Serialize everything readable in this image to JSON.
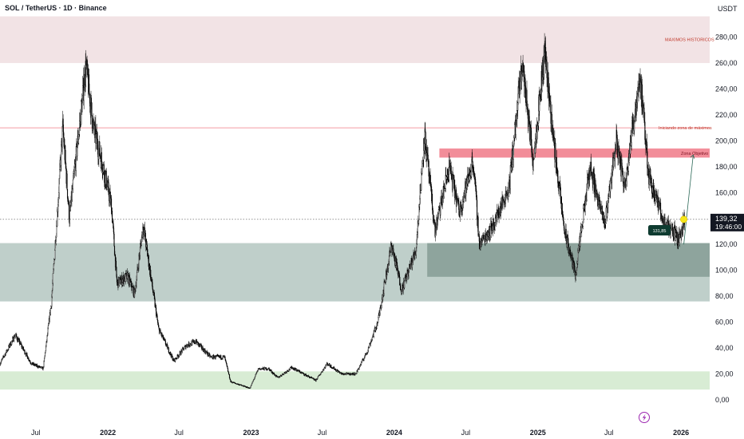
{
  "header": {
    "symbol_title": "SOL / TetherUS · 1D · Binance",
    "currency": "USDT"
  },
  "chart_data": {
    "type": "candlestick",
    "ylim": [
      -10,
      300
    ],
    "y_ticks": [
      {
        "value": 0,
        "label": "0,00"
      },
      {
        "value": 20,
        "label": "20,00"
      },
      {
        "value": 40,
        "label": "40,00"
      },
      {
        "value": 60,
        "label": "60,00"
      },
      {
        "value": 80,
        "label": "80,00"
      },
      {
        "value": 100,
        "label": "100,00"
      },
      {
        "value": 120,
        "label": "120,00"
      },
      {
        "value": 140,
        "label": "140,00"
      },
      {
        "value": 160,
        "label": "160,00"
      },
      {
        "value": 180,
        "label": "180,00"
      },
      {
        "value": 200,
        "label": "200,00"
      },
      {
        "value": 220,
        "label": "220,00"
      },
      {
        "value": 240,
        "label": "240,00"
      },
      {
        "value": 260,
        "label": "260,00"
      },
      {
        "value": 280,
        "label": "280,00"
      }
    ],
    "x_ticks": [
      {
        "date": "2021-07-01",
        "label": "Jul",
        "bold": false
      },
      {
        "date": "2022-01-01",
        "label": "2022",
        "bold": true
      },
      {
        "date": "2022-07-01",
        "label": "Jul",
        "bold": false
      },
      {
        "date": "2023-01-01",
        "label": "2023",
        "bold": true
      },
      {
        "date": "2023-07-01",
        "label": "Jul",
        "bold": false
      },
      {
        "date": "2024-01-01",
        "label": "2024",
        "bold": true
      },
      {
        "date": "2024-07-01",
        "label": "Jul",
        "bold": false
      },
      {
        "date": "2025-01-01",
        "label": "2025",
        "bold": true
      },
      {
        "date": "2025-07-01",
        "label": "Jul",
        "bold": false
      },
      {
        "date": "2026-01-01",
        "label": "2026",
        "bold": true
      }
    ],
    "xlim": [
      "2021-04-01",
      "2026-03-15"
    ],
    "price_path": [
      [
        "2021-04-01",
        28
      ],
      [
        "2021-05-10",
        50
      ],
      [
        "2021-06-20",
        28
      ],
      [
        "2021-07-20",
        24
      ],
      [
        "2021-08-10",
        75
      ],
      [
        "2021-09-08",
        210
      ],
      [
        "2021-09-25",
        140
      ],
      [
        "2021-10-20",
        210
      ],
      [
        "2021-11-06",
        258
      ],
      [
        "2021-11-25",
        210
      ],
      [
        "2021-12-20",
        180
      ],
      [
        "2022-01-10",
        150
      ],
      [
        "2022-01-24",
        90
      ],
      [
        "2022-02-20",
        95
      ],
      [
        "2022-03-10",
        82
      ],
      [
        "2022-04-01",
        135
      ],
      [
        "2022-05-10",
        55
      ],
      [
        "2022-06-18",
        30
      ],
      [
        "2022-07-20",
        42
      ],
      [
        "2022-08-13",
        45
      ],
      [
        "2022-09-20",
        33
      ],
      [
        "2022-10-25",
        33
      ],
      [
        "2022-11-10",
        14
      ],
      [
        "2022-12-29",
        9
      ],
      [
        "2023-01-20",
        24
      ],
      [
        "2023-02-15",
        24
      ],
      [
        "2023-03-10",
        17
      ],
      [
        "2023-04-15",
        25
      ],
      [
        "2023-05-15",
        20
      ],
      [
        "2023-06-15",
        15
      ],
      [
        "2023-07-14",
        28
      ],
      [
        "2023-08-20",
        20
      ],
      [
        "2023-09-25",
        20
      ],
      [
        "2023-10-25",
        38
      ],
      [
        "2023-11-20",
        60
      ],
      [
        "2023-12-25",
        120
      ],
      [
        "2024-01-20",
        85
      ],
      [
        "2024-02-25",
        115
      ],
      [
        "2024-03-18",
        205
      ],
      [
        "2024-04-14",
        130
      ],
      [
        "2024-05-20",
        180
      ],
      [
        "2024-06-15",
        145
      ],
      [
        "2024-07-20",
        185
      ],
      [
        "2024-08-05",
        120
      ],
      [
        "2024-09-10",
        135
      ],
      [
        "2024-10-20",
        165
      ],
      [
        "2024-11-22",
        260
      ],
      [
        "2024-12-20",
        185
      ],
      [
        "2025-01-19",
        270
      ],
      [
        "2025-02-10",
        200
      ],
      [
        "2025-03-10",
        130
      ],
      [
        "2025-04-07",
        97
      ],
      [
        "2025-05-14",
        180
      ],
      [
        "2025-06-20",
        135
      ],
      [
        "2025-07-20",
        200
      ],
      [
        "2025-08-10",
        165
      ],
      [
        "2025-09-18",
        250
      ],
      [
        "2025-10-10",
        175
      ],
      [
        "2025-11-20",
        135
      ],
      [
        "2025-12-10",
        132
      ],
      [
        "2025-12-25",
        123
      ],
      [
        "2026-01-10",
        139.32
      ]
    ],
    "current_price": 139.32,
    "countdown": "19:46:00",
    "marker_price": "131,85",
    "historical_high_zone": [
      260,
      296
    ],
    "historical_high_label": "MAXIMOS HISTORICOS",
    "sell_line": 210,
    "sell_label": "Iniciando zona de máximos",
    "target_zone": [
      187,
      194
    ],
    "target_label": "Zona Objetivo",
    "demand_zone_main": [
      76,
      121
    ],
    "demand_zone_inner": [
      95,
      121
    ],
    "low_zone": [
      8,
      22
    ],
    "projection": {
      "from": [
        "2026-01-08",
        120
      ],
      "to": [
        "2026-02-01",
        189
      ]
    },
    "colors": {
      "candle": "#000000",
      "historical_zone": "#f2e3e5",
      "historical_text": "#c0392b",
      "sell_line": "#f27a86",
      "target_zone": "#f28d99",
      "demand_main": "#bfcfca",
      "demand_inner": "#8ea49d",
      "low_zone": "#d8ecd4",
      "price_label_bg": "#131722",
      "marker_bg": "#0e3b30",
      "arrow": "#2e6b5a",
      "signal": "#f5e61b",
      "bolt": "#9c27b0"
    }
  },
  "icons": {
    "bolt": "lightning-bolt-icon"
  }
}
